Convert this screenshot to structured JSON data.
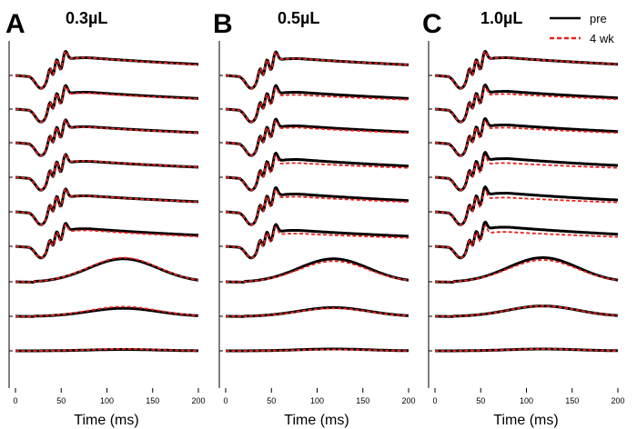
{
  "chart_data": [
    {
      "type": "line",
      "panel": "A",
      "title": "0.3µL",
      "xlabel": "Time (ms)",
      "ylabel": "",
      "xlim": [
        0,
        200
      ],
      "xticks": [
        0,
        50,
        100,
        150,
        200
      ],
      "xticklabels": [
        "0",
        "50",
        "100",
        "150",
        "200"
      ],
      "series": [
        {
          "name": "pre",
          "color": "#000000",
          "style": "solid",
          "traces": [
            {
              "kind": "full",
              "scale": 1.0,
              "cogn": 1.0,
              "tail": 0.0
            },
            {
              "kind": "full",
              "scale": 1.0,
              "cogn": 0.95,
              "tail": 0.0
            },
            {
              "kind": "full",
              "scale": 1.0,
              "cogn": 0.9,
              "tail": 0.0
            },
            {
              "kind": "full",
              "scale": 1.0,
              "cogn": 0.9,
              "tail": 0.0
            },
            {
              "kind": "full",
              "scale": 1.0,
              "cogn": 0.9,
              "tail": 0.0
            },
            {
              "kind": "full",
              "scale": 0.9,
              "cogn": 1.1,
              "tail": 0.0
            },
            {
              "kind": "late",
              "scale": 1.0,
              "cogn": 1.0,
              "tail": 0.0
            },
            {
              "kind": "late",
              "scale": 0.35,
              "cogn": 1.0,
              "tail": 0.0
            },
            {
              "kind": "late",
              "scale": 0.06,
              "cogn": 1.0,
              "tail": 0.0
            }
          ]
        },
        {
          "name": "4 wk",
          "color": "#e8211c",
          "style": "dashed",
          "traces": [
            {
              "kind": "full",
              "scale": 1.0,
              "cogn": 1.0,
              "tail": 0.1
            },
            {
              "kind": "full",
              "scale": 1.0,
              "cogn": 0.9,
              "tail": 0.0
            },
            {
              "kind": "full",
              "scale": 1.0,
              "cogn": 0.88,
              "tail": 0.0
            },
            {
              "kind": "full",
              "scale": 1.0,
              "cogn": 0.92,
              "tail": 0.05
            },
            {
              "kind": "full",
              "scale": 1.0,
              "cogn": 0.9,
              "tail": 0.05
            },
            {
              "kind": "full",
              "scale": 0.9,
              "cogn": 1.0,
              "tail": 0.08
            },
            {
              "kind": "late",
              "scale": 1.05,
              "cogn": 1.0,
              "tail": 0.0
            },
            {
              "kind": "late",
              "scale": 0.42,
              "cogn": 1.0,
              "tail": 0.0
            },
            {
              "kind": "late",
              "scale": 0.08,
              "cogn": 1.0,
              "tail": 0.0
            }
          ]
        }
      ]
    },
    {
      "type": "line",
      "panel": "B",
      "title": "0.5µL",
      "xlabel": "Time (ms)",
      "ylabel": "",
      "xlim": [
        0,
        200
      ],
      "xticks": [
        0,
        50,
        100,
        150,
        200
      ],
      "xticklabels": [
        "0",
        "50",
        "100",
        "150",
        "200"
      ],
      "series": [
        {
          "name": "pre",
          "color": "#000000",
          "style": "solid",
          "traces": [
            {
              "kind": "full",
              "scale": 1.0,
              "cogn": 0.95,
              "tail": 0.0
            },
            {
              "kind": "full",
              "scale": 1.0,
              "cogn": 0.95,
              "tail": 0.0
            },
            {
              "kind": "full",
              "scale": 1.0,
              "cogn": 0.95,
              "tail": 0.0
            },
            {
              "kind": "full",
              "scale": 1.0,
              "cogn": 1.0,
              "tail": 0.0
            },
            {
              "kind": "full",
              "scale": 1.0,
              "cogn": 1.0,
              "tail": 0.0
            },
            {
              "kind": "full",
              "scale": 0.9,
              "cogn": 1.0,
              "tail": 0.0
            },
            {
              "kind": "late",
              "scale": 1.0,
              "cogn": 1.0,
              "tail": 0.0
            },
            {
              "kind": "late",
              "scale": 0.38,
              "cogn": 1.0,
              "tail": 0.0
            },
            {
              "kind": "late",
              "scale": 0.08,
              "cogn": 1.0,
              "tail": 0.0
            }
          ]
        },
        {
          "name": "4 wk",
          "color": "#e8211c",
          "style": "dashed",
          "traces": [
            {
              "kind": "full",
              "scale": 1.0,
              "cogn": 0.95,
              "tail": 0.0
            },
            {
              "kind": "full",
              "scale": 1.0,
              "cogn": 0.8,
              "tail": -0.1
            },
            {
              "kind": "full",
              "scale": 1.0,
              "cogn": 0.85,
              "tail": -0.05
            },
            {
              "kind": "full",
              "scale": 1.0,
              "cogn": 0.8,
              "tail": -0.1
            },
            {
              "kind": "full",
              "scale": 1.0,
              "cogn": 0.85,
              "tail": -0.05
            },
            {
              "kind": "full",
              "scale": 0.9,
              "cogn": 0.8,
              "tail": -0.1
            },
            {
              "kind": "late",
              "scale": 0.9,
              "cogn": 1.0,
              "tail": 0.0
            },
            {
              "kind": "late",
              "scale": 0.35,
              "cogn": 1.0,
              "tail": 0.0
            },
            {
              "kind": "late",
              "scale": 0.06,
              "cogn": 1.0,
              "tail": 0.0
            }
          ]
        }
      ]
    },
    {
      "type": "line",
      "panel": "C",
      "title": "1.0µL",
      "xlabel": "Time (ms)",
      "ylabel": "",
      "xlim": [
        0,
        200
      ],
      "xticks": [
        0,
        50,
        100,
        150,
        200
      ],
      "xticklabels": [
        "0",
        "50",
        "100",
        "150",
        "200"
      ],
      "series": [
        {
          "name": "pre",
          "color": "#000000",
          "style": "solid",
          "traces": [
            {
              "kind": "full",
              "scale": 1.0,
              "cogn": 1.0,
              "tail": 0.0
            },
            {
              "kind": "full",
              "scale": 1.0,
              "cogn": 1.0,
              "tail": 0.0
            },
            {
              "kind": "full",
              "scale": 1.0,
              "cogn": 1.0,
              "tail": 0.0
            },
            {
              "kind": "full",
              "scale": 1.0,
              "cogn": 1.05,
              "tail": 0.0
            },
            {
              "kind": "full",
              "scale": 1.0,
              "cogn": 1.05,
              "tail": 0.0
            },
            {
              "kind": "full",
              "scale": 0.9,
              "cogn": 1.2,
              "tail": 0.0
            },
            {
              "kind": "late",
              "scale": 1.05,
              "cogn": 1.0,
              "tail": 0.0
            },
            {
              "kind": "late",
              "scale": 0.45,
              "cogn": 1.0,
              "tail": 0.0
            },
            {
              "kind": "late",
              "scale": 0.08,
              "cogn": 1.0,
              "tail": 0.0
            }
          ]
        },
        {
          "name": "4 wk",
          "color": "#e8211c",
          "style": "dashed",
          "traces": [
            {
              "kind": "full",
              "scale": 1.0,
              "cogn": 1.0,
              "tail": 0.0
            },
            {
              "kind": "full",
              "scale": 1.0,
              "cogn": 0.85,
              "tail": -0.08
            },
            {
              "kind": "full",
              "scale": 1.0,
              "cogn": 0.85,
              "tail": -0.08
            },
            {
              "kind": "full",
              "scale": 1.0,
              "cogn": 0.8,
              "tail": -0.1
            },
            {
              "kind": "full",
              "scale": 1.0,
              "cogn": 0.8,
              "tail": -0.1
            },
            {
              "kind": "full",
              "scale": 0.9,
              "cogn": 0.9,
              "tail": -0.1
            },
            {
              "kind": "late",
              "scale": 0.95,
              "cogn": 1.0,
              "tail": -0.05
            },
            {
              "kind": "late",
              "scale": 0.45,
              "cogn": 1.0,
              "tail": 0.0
            },
            {
              "kind": "late",
              "scale": 0.08,
              "cogn": 1.0,
              "tail": 0.0
            }
          ]
        }
      ]
    }
  ],
  "legend": {
    "entries": [
      {
        "label": "pre",
        "color": "#000000",
        "style": "solid"
      },
      {
        "label": "4 wk",
        "color": "#e8211c",
        "style": "dashed"
      }
    ],
    "placement": "top-right"
  }
}
